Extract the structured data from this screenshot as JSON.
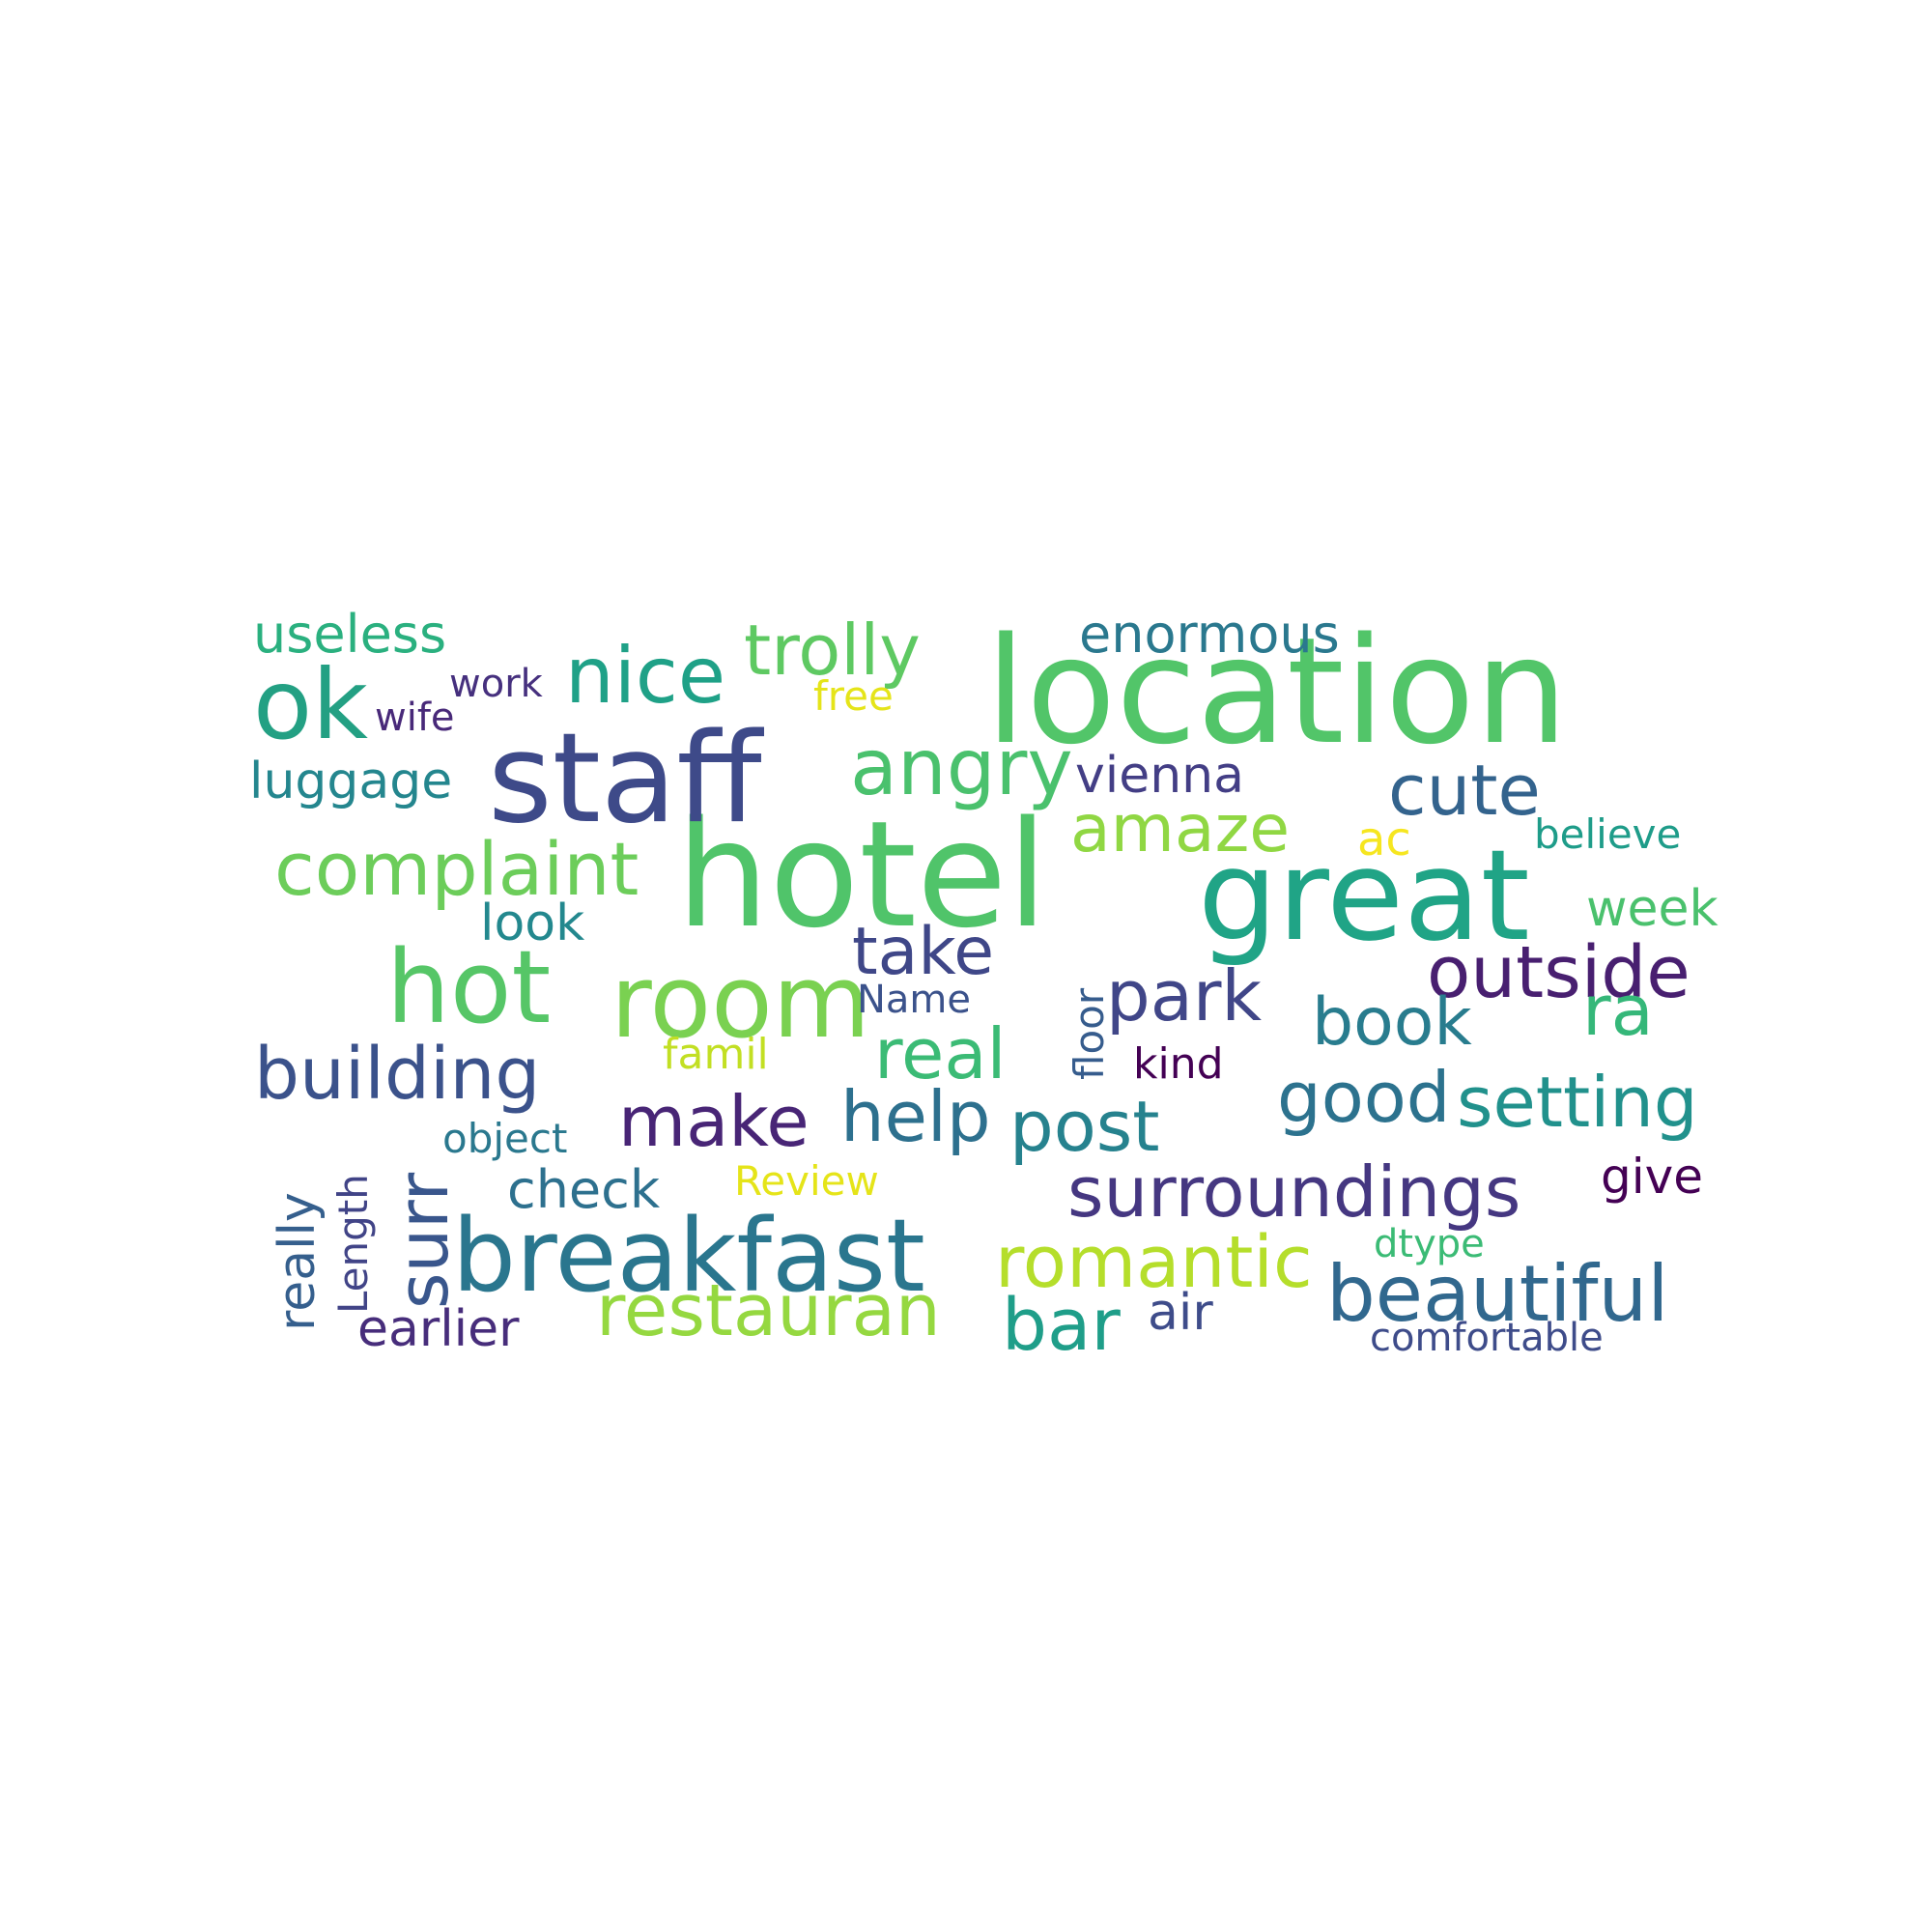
{
  "words": [
    {
      "text": "location",
      "color": "#52c569"
    },
    {
      "text": "hotel",
      "color": "#50c46a"
    },
    {
      "text": "great",
      "color": "#20a486"
    },
    {
      "text": "staff",
      "color": "#3e4a89"
    },
    {
      "text": "breakfast",
      "color": "#2a768e"
    },
    {
      "text": "room",
      "color": "#7ad151"
    },
    {
      "text": "hot",
      "color": "#56c667"
    },
    {
      "text": "ok",
      "color": "#23a083"
    },
    {
      "text": "trolly",
      "color": "#5ec962"
    },
    {
      "text": "nice",
      "color": "#1fa187"
    },
    {
      "text": "angry",
      "color": "#4ac16d"
    },
    {
      "text": "complaint",
      "color": "#6ccd5a"
    },
    {
      "text": "building",
      "color": "#3b528b"
    },
    {
      "text": "surr",
      "color": "#39568c"
    },
    {
      "text": "restauran",
      "color": "#95d840"
    },
    {
      "text": "romantic",
      "color": "#b5de2b"
    },
    {
      "text": "beautiful",
      "color": "#31688e"
    },
    {
      "text": "surroundings",
      "color": "#453781"
    },
    {
      "text": "outside",
      "color": "#481f70"
    },
    {
      "text": "setting",
      "color": "#21918c"
    },
    {
      "text": "good",
      "color": "#2c728e"
    },
    {
      "text": "post",
      "color": "#26828e"
    },
    {
      "text": "help",
      "color": "#2d708e"
    },
    {
      "text": "make",
      "color": "#482576"
    },
    {
      "text": "park",
      "color": "#404688"
    },
    {
      "text": "real",
      "color": "#3bbb75"
    },
    {
      "text": "take",
      "color": "#3f4788"
    },
    {
      "text": "amaze",
      "color": "#90d743"
    },
    {
      "text": "cute",
      "color": "#33638d"
    },
    {
      "text": "book",
      "color": "#287c8e"
    },
    {
      "text": "ra",
      "color": "#35b779"
    },
    {
      "text": "bar",
      "color": "#1f9e89"
    },
    {
      "text": "enormous",
      "color": "#2a788e"
    },
    {
      "text": "useless",
      "color": "#2ab07f"
    },
    {
      "text": "luggage",
      "color": "#24868e"
    },
    {
      "text": "vienna",
      "color": "#433e85"
    },
    {
      "text": "check",
      "color": "#2d708e"
    },
    {
      "text": "earlier",
      "color": "#472d7b"
    },
    {
      "text": "air",
      "color": "#3e4c8a"
    },
    {
      "text": "look",
      "color": "#23888e"
    },
    {
      "text": "week",
      "color": "#4ac16d"
    },
    {
      "text": "give",
      "color": "#440154"
    },
    {
      "text": "really",
      "color": "#355f8d"
    },
    {
      "text": "Length",
      "color": "#414487"
    },
    {
      "text": "floor",
      "color": "#365c8d"
    },
    {
      "text": "ac",
      "color": "#f6e620"
    },
    {
      "text": "believe",
      "color": "#1e9c89"
    },
    {
      "text": "work",
      "color": "#46307e"
    },
    {
      "text": "wife",
      "color": "#482979"
    },
    {
      "text": "free",
      "color": "#e5e419"
    },
    {
      "text": "Name",
      "color": "#3b528b"
    },
    {
      "text": "famil",
      "color": "#c2df23"
    },
    {
      "text": "kind",
      "color": "#440154"
    },
    {
      "text": "object",
      "color": "#2a788e"
    },
    {
      "text": "Review",
      "color": "#e5e419"
    },
    {
      "text": "dtype",
      "color": "#3bbb75"
    },
    {
      "text": "comfortable",
      "color": "#3e4c8a"
    }
  ]
}
